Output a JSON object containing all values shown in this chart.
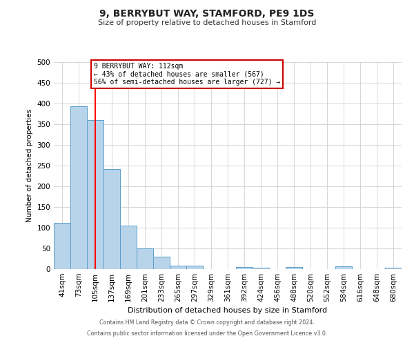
{
  "title": "9, BERRYBUT WAY, STAMFORD, PE9 1DS",
  "subtitle": "Size of property relative to detached houses in Stamford",
  "xlabel": "Distribution of detached houses by size in Stamford",
  "ylabel": "Number of detached properties",
  "bar_color": "#b8d4ea",
  "bar_edge_color": "#5b9ec9",
  "bin_labels": [
    "41sqm",
    "73sqm",
    "105sqm",
    "137sqm",
    "169sqm",
    "201sqm",
    "233sqm",
    "265sqm",
    "297sqm",
    "329sqm",
    "361sqm",
    "392sqm",
    "424sqm",
    "456sqm",
    "488sqm",
    "520sqm",
    "552sqm",
    "584sqm",
    "616sqm",
    "648sqm",
    "680sqm"
  ],
  "bar_values": [
    112,
    393,
    360,
    242,
    105,
    50,
    30,
    8,
    8,
    0,
    0,
    5,
    3,
    0,
    5,
    0,
    0,
    6,
    0,
    0,
    3
  ],
  "ylim": [
    0,
    500
  ],
  "yticks": [
    0,
    50,
    100,
    150,
    200,
    250,
    300,
    350,
    400,
    450,
    500
  ],
  "red_line_x": 2,
  "annotation_text": "9 BERRYBUT WAY: 112sqm\n← 43% of detached houses are smaller (567)\n56% of semi-detached houses are larger (727) →",
  "annotation_box_color": "#ffffff",
  "annotation_border_color": "#cc0000",
  "footer_line1": "Contains HM Land Registry data © Crown copyright and database right 2024.",
  "footer_line2": "Contains public sector information licensed under the Open Government Licence v3.0.",
  "background_color": "#ffffff",
  "grid_color": "#d0d0d0"
}
